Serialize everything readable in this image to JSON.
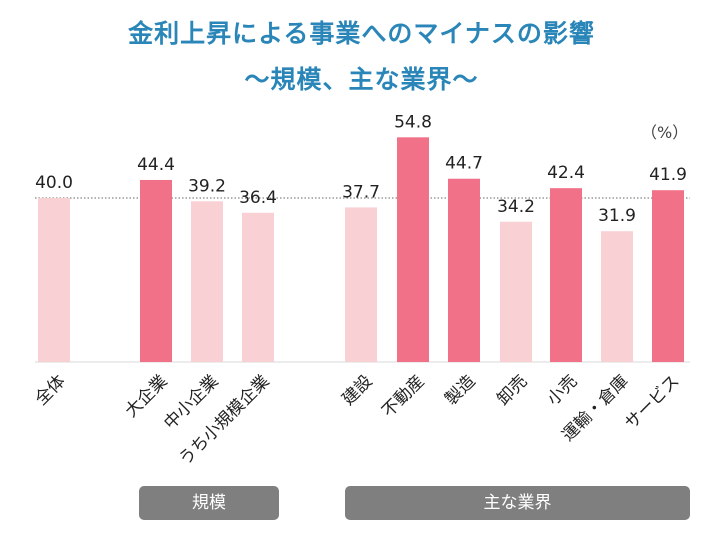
{
  "title_line1": "金利上昇による事業へのマイナスの影響",
  "title_line2": "～規模、主な業界～",
  "unit_label": "（%）",
  "groups": {
    "size": "規模",
    "industry": "主な業界"
  },
  "colors": {
    "light": "#f9d0d3",
    "dark": "#f07188"
  },
  "chart_data": {
    "type": "bar",
    "categories": [
      "全体",
      "大企業",
      "中小企業",
      "うち小規模企業",
      "建設",
      "不動産",
      "製造",
      "卸売",
      "小売",
      "運輸・倉庫",
      "サービス"
    ],
    "values": [
      40.0,
      44.4,
      39.2,
      36.4,
      37.7,
      54.8,
      44.7,
      34.2,
      42.4,
      31.9,
      41.9
    ],
    "highlight": [
      false,
      true,
      false,
      false,
      false,
      true,
      true,
      false,
      true,
      false,
      true
    ],
    "reference_line": 40.0,
    "ylim": [
      0,
      60
    ],
    "unit": "%"
  }
}
